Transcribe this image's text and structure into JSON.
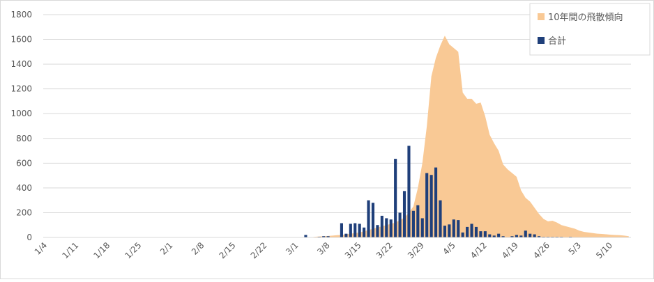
{
  "chart_data": {
    "type": "bar",
    "categories": [
      "1/4",
      null,
      null,
      null,
      null,
      null,
      null,
      "1/11",
      null,
      null,
      null,
      null,
      null,
      null,
      "1/18",
      null,
      null,
      null,
      null,
      null,
      null,
      "1/25",
      null,
      null,
      null,
      null,
      null,
      null,
      "2/1",
      null,
      null,
      null,
      null,
      null,
      null,
      "2/8",
      null,
      null,
      null,
      null,
      null,
      null,
      "2/15",
      null,
      null,
      null,
      null,
      null,
      null,
      "2/22",
      null,
      null,
      null,
      null,
      null,
      null,
      "3/1",
      null,
      null,
      null,
      null,
      null,
      null,
      "3/8",
      null,
      null,
      null,
      null,
      null,
      null,
      "3/15",
      null,
      null,
      null,
      null,
      null,
      null,
      "3/22",
      null,
      null,
      null,
      null,
      null,
      null,
      "3/29",
      null,
      null,
      null,
      null,
      null,
      null,
      "4/5",
      null,
      null,
      null,
      null,
      null,
      null,
      "4/12",
      null,
      null,
      null,
      null,
      null,
      null,
      "4/19",
      null,
      null,
      null,
      null,
      null,
      null,
      "4/26",
      null,
      null,
      null,
      null,
      null,
      null,
      "5/3",
      null,
      null,
      null,
      null,
      null,
      null,
      "5/10",
      null,
      null,
      null,
      null
    ],
    "series": [
      {
        "name": "10年間の飛散傾向",
        "type": "area",
        "color": "#f9c995",
        "values": [
          0,
          0,
          0,
          0,
          0,
          0,
          0,
          0,
          0,
          0,
          0,
          0,
          0,
          0,
          0,
          0,
          0,
          0,
          0,
          0,
          0,
          0,
          0,
          0,
          0,
          0,
          0,
          0,
          0,
          0,
          0,
          0,
          0,
          0,
          0,
          0,
          0,
          0,
          0,
          0,
          0,
          0,
          0,
          0,
          0,
          0,
          0,
          0,
          0,
          0,
          0,
          0,
          0,
          0,
          0,
          0,
          0,
          0,
          0,
          0,
          5,
          8,
          10,
          12,
          15,
          18,
          20,
          25,
          30,
          35,
          40,
          50,
          60,
          70,
          80,
          90,
          100,
          110,
          120,
          140,
          160,
          200,
          250,
          400,
          600,
          900,
          1300,
          1450,
          1550,
          1630,
          1560,
          1530,
          1500,
          1170,
          1120,
          1120,
          1080,
          1090,
          980,
          830,
          760,
          700,
          590,
          550,
          520,
          490,
          380,
          320,
          290,
          240,
          190,
          150,
          130,
          135,
          120,
          100,
          90,
          80,
          70,
          55,
          45,
          40,
          35,
          30,
          28,
          25,
          22,
          20,
          18,
          15,
          10
        ]
      },
      {
        "name": "合計",
        "type": "bar",
        "color": "#1f3f7a",
        "values": [
          0,
          0,
          0,
          0,
          0,
          0,
          0,
          0,
          0,
          0,
          0,
          0,
          0,
          0,
          0,
          0,
          0,
          0,
          0,
          0,
          0,
          0,
          0,
          0,
          0,
          0,
          0,
          0,
          0,
          0,
          0,
          0,
          0,
          0,
          0,
          0,
          0,
          0,
          0,
          0,
          0,
          0,
          0,
          0,
          0,
          0,
          0,
          0,
          0,
          0,
          0,
          0,
          0,
          0,
          0,
          0,
          0,
          0,
          20,
          0,
          0,
          5,
          10,
          10,
          0,
          0,
          115,
          30,
          110,
          115,
          110,
          80,
          300,
          280,
          100,
          175,
          155,
          145,
          635,
          200,
          375,
          740,
          215,
          260,
          155,
          520,
          505,
          565,
          300,
          95,
          105,
          145,
          140,
          40,
          85,
          110,
          85,
          50,
          50,
          25,
          15,
          30,
          10,
          0,
          10,
          20,
          15,
          55,
          30,
          25,
          10,
          5,
          5,
          5,
          5,
          5,
          0,
          5,
          0,
          0,
          0,
          0,
          0,
          0,
          0,
          0,
          0,
          0,
          0,
          0,
          0
        ]
      }
    ],
    "ylim": [
      0,
      1800
    ],
    "yticks": [
      0,
      200,
      400,
      600,
      800,
      1000,
      1200,
      1400,
      1600,
      1800
    ],
    "grid": true,
    "legend": "top-right"
  }
}
